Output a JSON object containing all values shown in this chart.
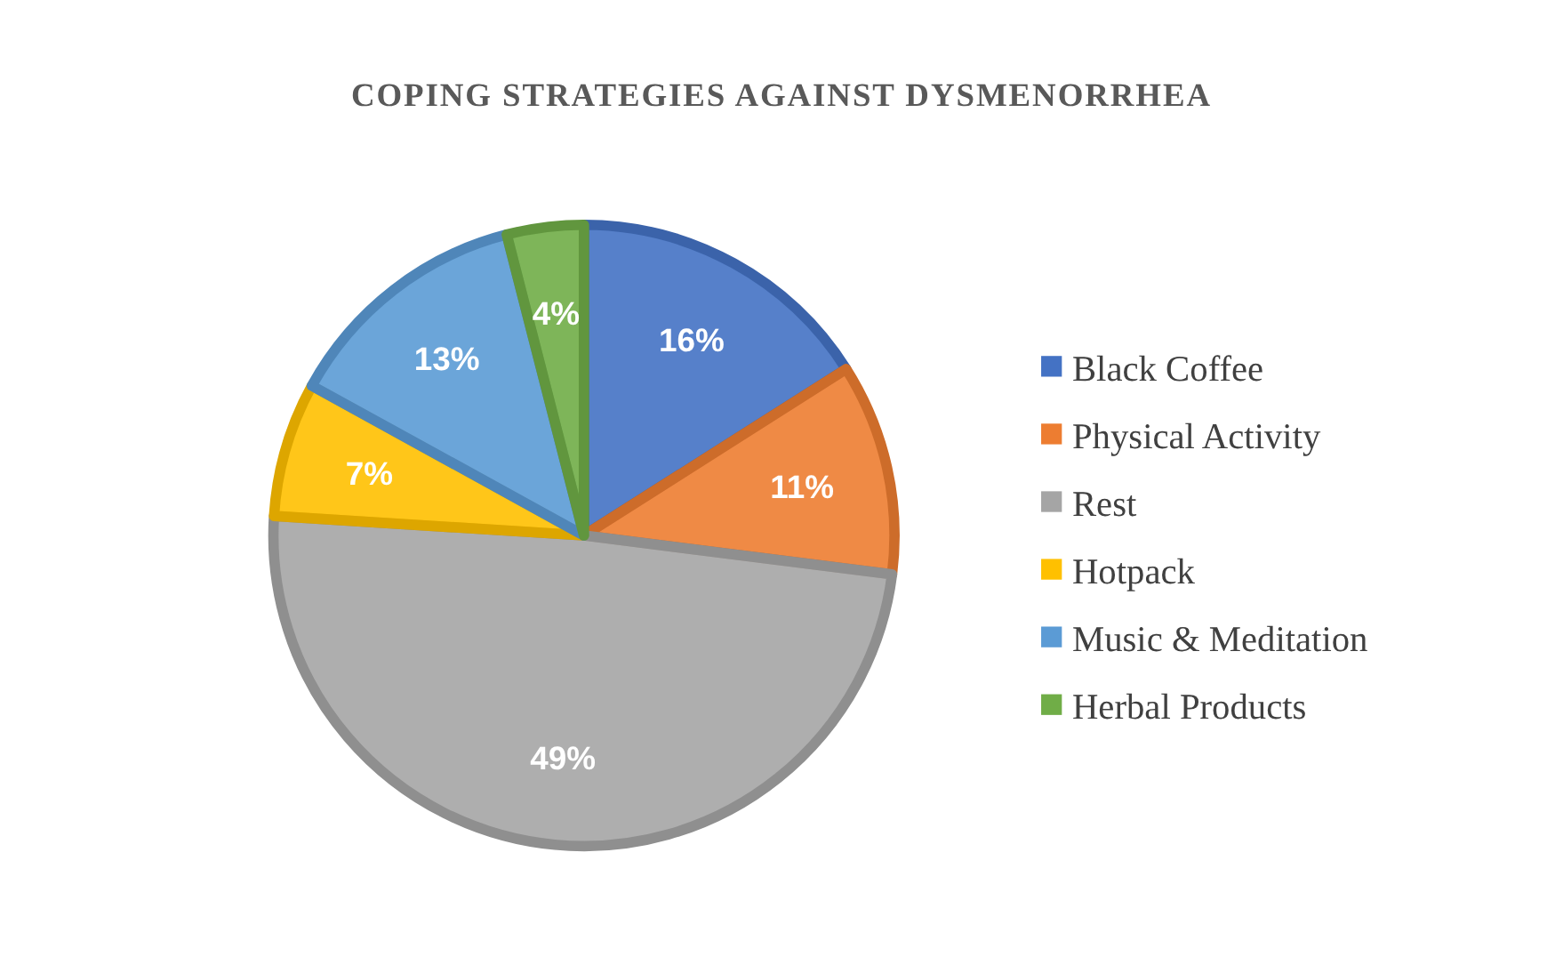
{
  "chart_data": {
    "type": "pie",
    "title": "COPING STRATEGIES AGAINST DYSMENORRHEA",
    "categories": [
      "Black Coffee",
      "Physical Activity",
      "Rest",
      "Hotpack",
      "Music & Meditation",
      "Herbal Products"
    ],
    "values": [
      16,
      11,
      49,
      7,
      13,
      4
    ],
    "colors": [
      "#4472c4",
      "#ed7d31",
      "#a5a5a5",
      "#ffc000",
      "#5b9bd5",
      "#70ad47"
    ],
    "value_labels": [
      "16%",
      "11%",
      "49%",
      "7%",
      "13%",
      "4%"
    ],
    "legend": "right"
  }
}
